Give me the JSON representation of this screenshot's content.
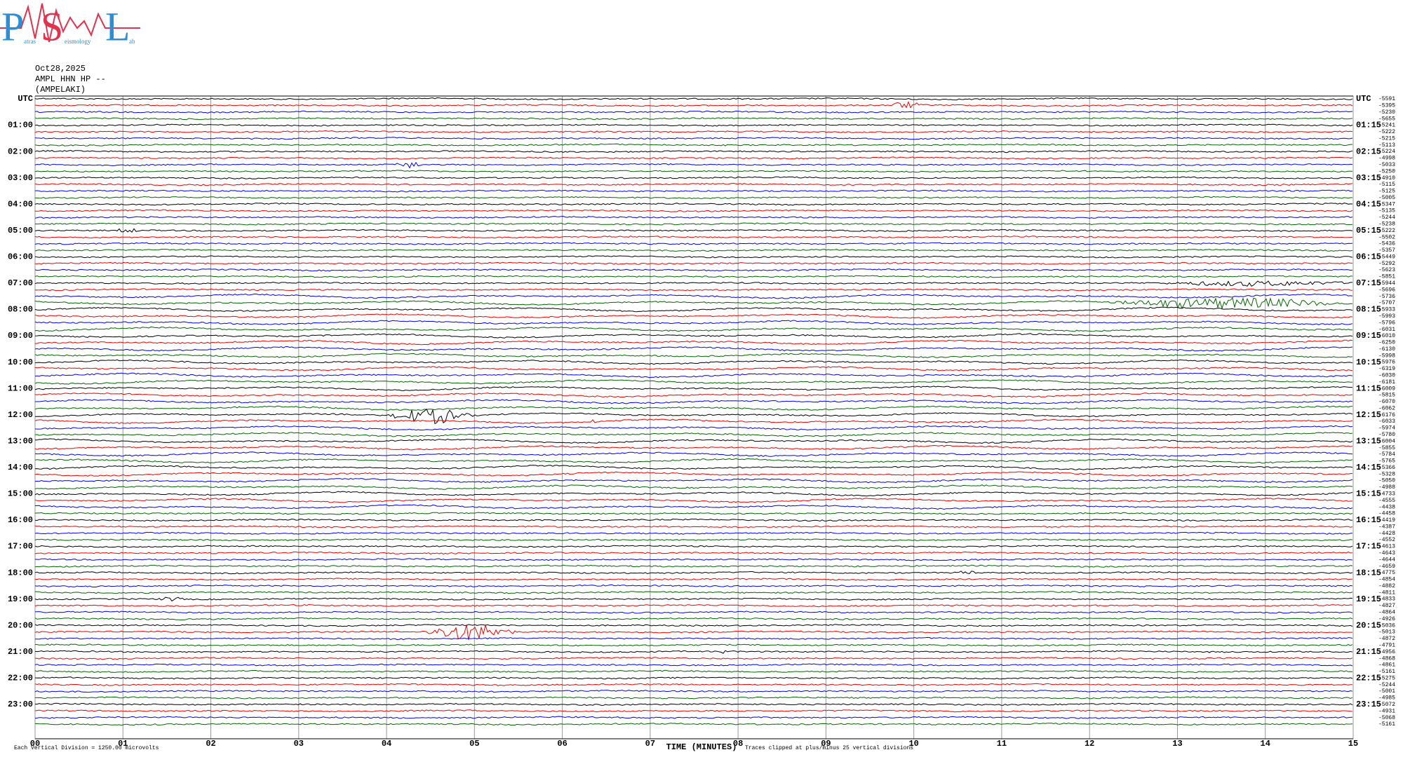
{
  "logo": {
    "letters": [
      "P",
      "S",
      "L"
    ],
    "words": [
      "atras",
      "eismology",
      "ab"
    ]
  },
  "header": {
    "date": "Oct28,2025",
    "station": "AMPL HHN HP --",
    "location": "(AMPELAKI)"
  },
  "left_labels": [
    "UTC",
    "01:00",
    "02:00",
    "03:00",
    "04:00",
    "05:00",
    "06:00",
    "07:00",
    "08:00",
    "09:00",
    "10:00",
    "11:00",
    "12:00",
    "13:00",
    "14:00",
    "15:00",
    "16:00",
    "17:00",
    "18:00",
    "19:00",
    "20:00",
    "21:00",
    "22:00",
    "23:00"
  ],
  "right_labels": [
    "UTC",
    "01:15",
    "02:15",
    "03:15",
    "04:15",
    "05:15",
    "06:15",
    "07:15",
    "08:15",
    "09:15",
    "10:15",
    "11:15",
    "12:15",
    "13:15",
    "14:15",
    "15:15",
    "16:15",
    "17:15",
    "18:15",
    "19:15",
    "20:15",
    "21:15",
    "22:15",
    "23:15"
  ],
  "trace_offsets": [
    -5591,
    -5395,
    -5230,
    -5655,
    -5241,
    -5222,
    -5215,
    -5113,
    -5224,
    -4998,
    -5033,
    -5250,
    -4910,
    -5115,
    -5125,
    -5005,
    -5347,
    -5135,
    -5244,
    -5238,
    -5222,
    -5502,
    -5436,
    -5357,
    -5449,
    -5292,
    -5623,
    -5851,
    -5944,
    -5696,
    -5736,
    -5707,
    -5933,
    -5993,
    -5796,
    -6031,
    -6010,
    -6250,
    -6130,
    -5998,
    -5976,
    -6319,
    -6030,
    -6181,
    -6009,
    -5815,
    -6070,
    -6062,
    -6176,
    -6033,
    -5974,
    -5780,
    -6004,
    -5855,
    -5784,
    -5765,
    -5366,
    -5328,
    -5050,
    -4988,
    -4733,
    -4555,
    -4438,
    -4458,
    -4419,
    -4387,
    -4428,
    -4552,
    -4613,
    -4643,
    -4644,
    -4659,
    -4775,
    -4854,
    -4882,
    -4811,
    -4833,
    -4827,
    -4864,
    -4926,
    -5036,
    -5013,
    -4872,
    -4791,
    -4956,
    -4868,
    -4861,
    -5161,
    -5275,
    -5244,
    -5001,
    -4985,
    -5072,
    -4931,
    -5068,
    -5161
  ],
  "x_ticks": [
    "00",
    "01",
    "02",
    "03",
    "04",
    "05",
    "06",
    "07",
    "08",
    "09",
    "10",
    "11",
    "12",
    "13",
    "14",
    "15"
  ],
  "x_axis_title": "TIME (MINUTES)",
  "footer_left": "Each Vertical Division = 1250.00 microvolts",
  "footer_right": "Traces clipped at plus/minus 25 vertical divisions"
}
